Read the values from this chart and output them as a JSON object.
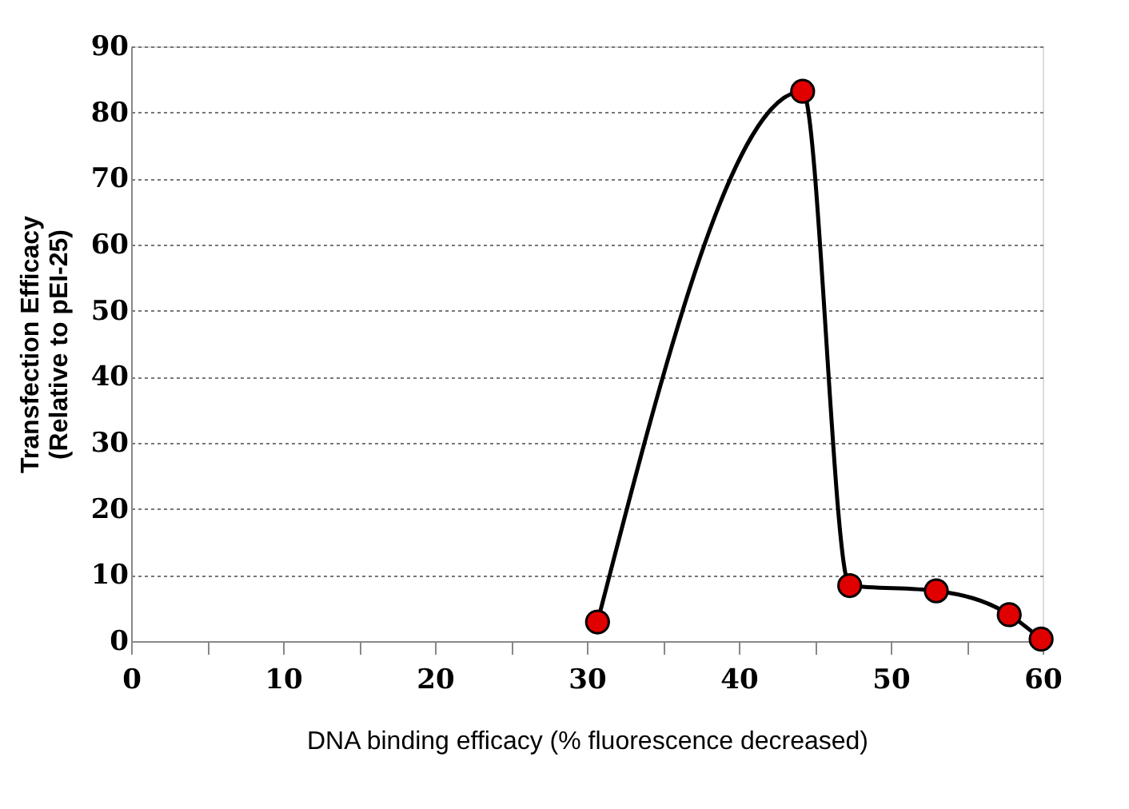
{
  "chart_data": {
    "type": "line",
    "xlabel": "DNA binding efficacy (% fluorescence decreased)",
    "ylabel": "Transfection Efficacy\n(Relative to pEI-25)",
    "x": [
      30.7,
      44.2,
      47.3,
      53.0,
      57.8,
      59.9
    ],
    "series": [
      {
        "color": "#e00000",
        "values": [
          2.9,
          83.2,
          8.4,
          7.6,
          4.0,
          0.3
        ]
      }
    ],
    "xlim": [
      0,
      60
    ],
    "xticks": [
      0,
      {
        "value": 5,
        "label": null
      },
      10,
      {
        "value": 15,
        "label": null
      },
      20,
      {
        "value": 25,
        "label": null
      },
      30,
      {
        "value": 35,
        "label": null
      },
      40,
      {
        "value": 45,
        "label": null
      },
      50,
      {
        "value": 55,
        "label": null
      },
      60
    ],
    "ylim": [
      0,
      90
    ],
    "yticks": [
      0,
      10,
      20,
      30,
      40,
      50,
      60,
      70,
      80,
      90
    ],
    "grid": "y",
    "marker": "circle",
    "line_style": "solid"
  }
}
